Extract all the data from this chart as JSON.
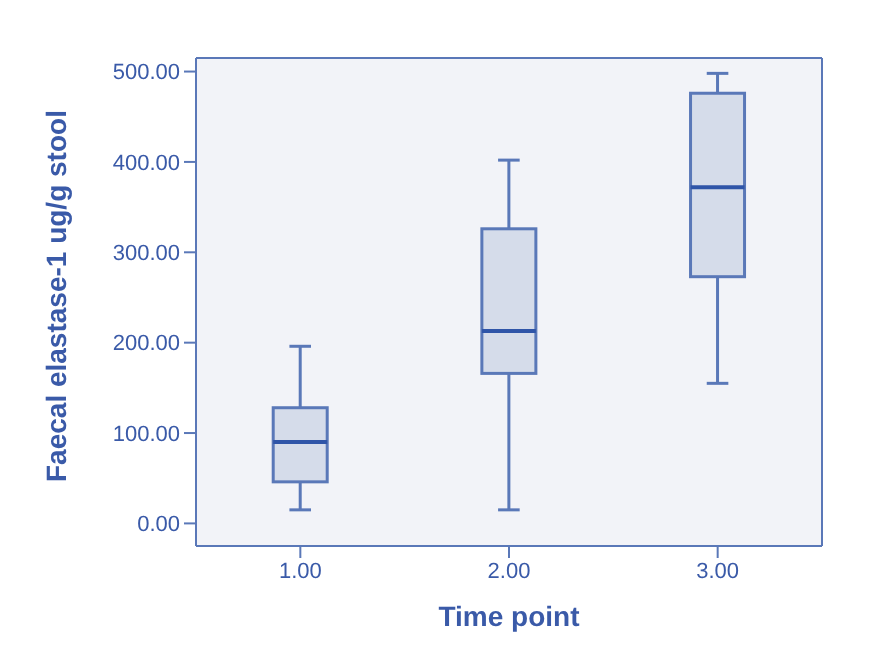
{
  "chart_data": {
    "type": "box",
    "xlabel": "Time point",
    "ylabel": "Faecal elastase-1 ug/g stool",
    "categories": [
      "1.00",
      "2.00",
      "3.00"
    ],
    "boxes": [
      {
        "low": 15,
        "q1": 46,
        "median": 90,
        "q3": 128,
        "high": 196
      },
      {
        "low": 15,
        "q1": 166,
        "median": 213,
        "q3": 326,
        "high": 402
      },
      {
        "low": 155,
        "q1": 273,
        "median": 372,
        "q3": 476,
        "high": 498
      }
    ],
    "color": "#d5dcea",
    "ylim": [
      -25,
      515
    ],
    "yticks": [
      {
        "value": 0,
        "label": "0.00"
      },
      {
        "value": 100,
        "label": "100.00"
      },
      {
        "value": 200,
        "label": "200.00"
      },
      {
        "value": 300,
        "label": "300.00"
      },
      {
        "value": 400,
        "label": "400.00"
      },
      {
        "value": 500,
        "label": "500.00"
      }
    ],
    "grid": false
  }
}
